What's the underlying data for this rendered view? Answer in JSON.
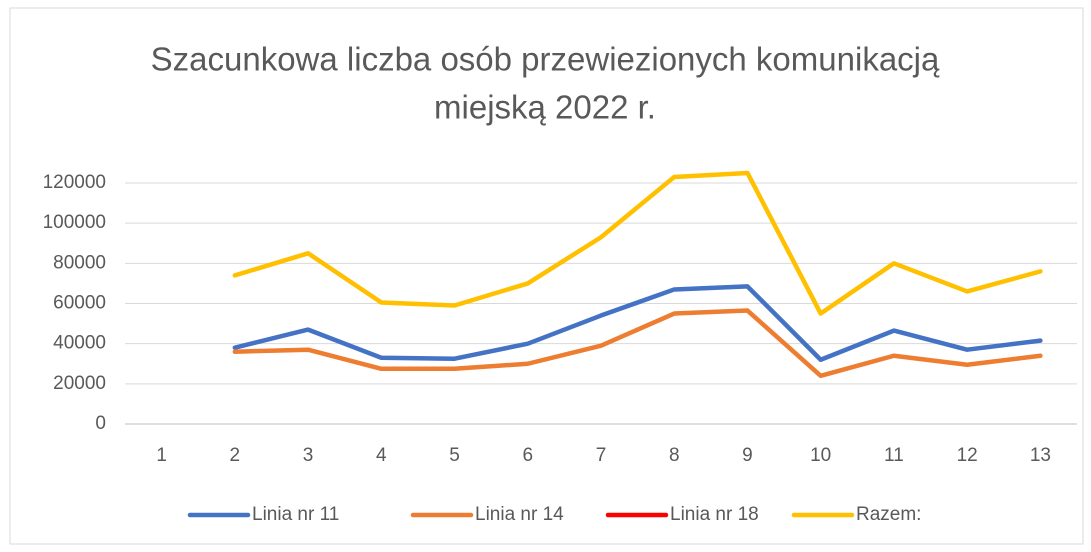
{
  "chart_data": {
    "type": "line",
    "title": [
      "Szacunkowa liczba osób przewiezionych komunikacją",
      "miejską 2022 r."
    ],
    "categories": [
      "1",
      "2",
      "3",
      "4",
      "5",
      "6",
      "7",
      "8",
      "9",
      "10",
      "11",
      "12",
      "13"
    ],
    "series": [
      {
        "name": "Linia nr 11",
        "color": "#4472c4",
        "values": [
          null,
          38000,
          47000,
          33000,
          32500,
          40000,
          54000,
          67000,
          68500,
          32000,
          46500,
          37000,
          41500
        ]
      },
      {
        "name": "Linia nr 14",
        "color": "#ed7d31",
        "values": [
          null,
          36000,
          37000,
          27500,
          27500,
          30000,
          39000,
          55000,
          56500,
          24000,
          34000,
          29500,
          34000
        ]
      },
      {
        "name": "Linia nr 18",
        "color": "#ff0000",
        "values": [
          null,
          null,
          null,
          null,
          null,
          null,
          null,
          null,
          null,
          null,
          null,
          null,
          null
        ]
      },
      {
        "name": "Razem:",
        "color": "#ffc000",
        "values": [
          null,
          74000,
          85000,
          60500,
          59000,
          70000,
          93000,
          123000,
          125000,
          55000,
          80000,
          66000,
          76000
        ]
      }
    ],
    "ylim": [
      0,
      120000
    ],
    "yticks": [
      0,
      20000,
      40000,
      60000,
      80000,
      100000,
      120000
    ],
    "grid": true,
    "legend": "bottom"
  }
}
